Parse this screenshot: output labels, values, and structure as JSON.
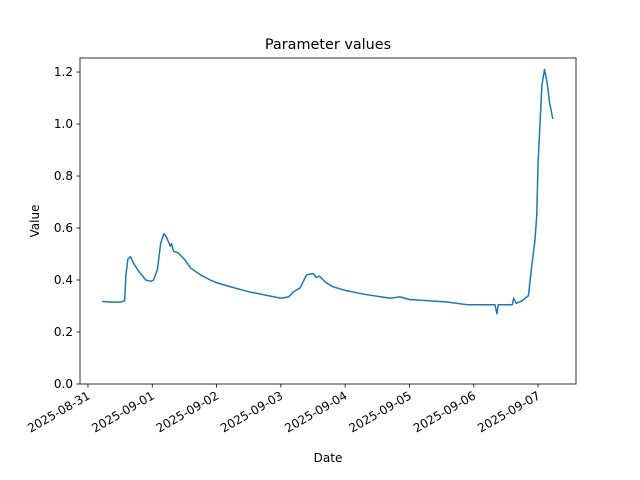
{
  "chart_data": {
    "type": "line",
    "title": "Parameter values",
    "xlabel": "Date",
    "ylabel": "Value",
    "xlim": [
      -0.124,
      7.59
    ],
    "ylim": [
      0,
      1.254
    ],
    "xticks": [
      {
        "value": 0,
        "label": "2025-08-31"
      },
      {
        "value": 1,
        "label": "2025-09-01"
      },
      {
        "value": 2,
        "label": "2025-09-02"
      },
      {
        "value": 3,
        "label": "2025-09-03"
      },
      {
        "value": 4,
        "label": "2025-09-04"
      },
      {
        "value": 5,
        "label": "2025-09-05"
      },
      {
        "value": 6,
        "label": "2025-09-06"
      },
      {
        "value": 7,
        "label": "2025-09-07"
      }
    ],
    "yticks": [
      {
        "value": 0,
        "label": "0.0"
      },
      0.2,
      0.4,
      0.6,
      0.8,
      {
        "value": 1,
        "label": "1.0"
      },
      1.2
    ],
    "series": [
      {
        "color": "#1f77b4",
        "x": [
          0.22,
          0.35,
          0.5,
          0.57,
          0.59,
          0.62,
          0.66,
          0.72,
          0.8,
          0.9,
          0.98,
          1.02,
          1.08,
          1.13,
          1.18,
          1.22,
          1.28,
          1.3,
          1.33,
          1.4,
          1.5,
          1.6,
          1.75,
          1.9,
          2.0,
          2.2,
          2.5,
          2.8,
          3.0,
          3.12,
          3.2,
          3.3,
          3.4,
          3.5,
          3.55,
          3.6,
          3.7,
          3.8,
          4.0,
          4.3,
          4.7,
          4.85,
          5.0,
          5.3,
          5.6,
          5.9,
          6.2,
          6.33,
          6.36,
          6.38,
          6.6,
          6.62,
          6.66,
          6.75,
          6.85,
          6.9,
          6.95,
          6.98,
          7.0,
          7.03,
          7.06,
          7.1,
          7.14,
          7.18,
          7.23
        ],
        "values": [
          0.318,
          0.315,
          0.315,
          0.32,
          0.42,
          0.48,
          0.49,
          0.46,
          0.43,
          0.4,
          0.395,
          0.4,
          0.44,
          0.54,
          0.578,
          0.565,
          0.53,
          0.54,
          0.51,
          0.505,
          0.48,
          0.445,
          0.42,
          0.4,
          0.39,
          0.375,
          0.355,
          0.34,
          0.33,
          0.335,
          0.355,
          0.37,
          0.42,
          0.425,
          0.41,
          0.415,
          0.39,
          0.375,
          0.36,
          0.345,
          0.33,
          0.335,
          0.325,
          0.32,
          0.315,
          0.305,
          0.305,
          0.305,
          0.27,
          0.305,
          0.305,
          0.33,
          0.31,
          0.32,
          0.34,
          0.45,
          0.55,
          0.65,
          0.85,
          1.0,
          1.15,
          1.21,
          1.16,
          1.08,
          1.02
        ]
      }
    ]
  }
}
